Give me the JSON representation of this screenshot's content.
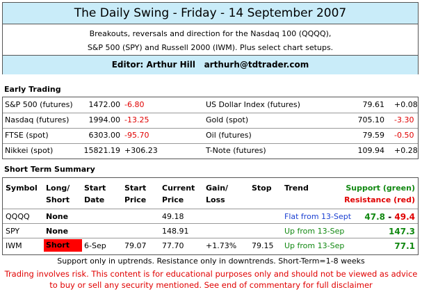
{
  "header": {
    "title": "The Daily Swing - Friday - 14 September 2007",
    "lines": [
      "Breakouts, reversals and direction for the Nasdaq 100 (QQQQ),",
      "S&P 500 (SPY) and Russell 2000 (IWM). Plus select chart setups."
    ],
    "editor_label": "Editor:",
    "editor": "Arthur Hill",
    "email": "arthurh@tdtrader.com"
  },
  "early_trading": {
    "title": "Early Trading",
    "rows": [
      [
        "S&P 500 (futures)",
        "1472.00",
        "-6.80",
        "US Dollar Index (futures)",
        "79.61",
        "+0.08"
      ],
      [
        "Nasdaq (futures)",
        "1994.00",
        "-13.25",
        "Gold (spot)",
        "705.10",
        "-3.30"
      ],
      [
        "FTSE (spot)",
        "6303.00",
        "-95.70",
        "Oil (futures)",
        "79.59",
        "-0.50"
      ],
      [
        "Nikkei (spot)",
        "15821.19",
        "+306.23",
        "T-Note (futures)",
        "109.94",
        "+0.28"
      ]
    ]
  },
  "summary": {
    "title": "Short Term Summary",
    "columns": [
      [
        "Symbol"
      ],
      [
        "Long/",
        "Short"
      ],
      [
        "Start",
        "Date"
      ],
      [
        "Start",
        "Price"
      ],
      [
        "Current",
        "Price"
      ],
      [
        "Gain/",
        "Loss"
      ],
      [
        "Stop"
      ],
      [
        "Trend"
      ]
    ],
    "support_label": "Support (green)",
    "resistance_label": "Resistance (red)",
    "level_separator": "-",
    "rows": [
      {
        "symbol": "QQQQ",
        "position": "None",
        "current_price": "49.18",
        "trend": "Flat from 13-Sept",
        "support": "47.8",
        "resistance": "49.4"
      },
      {
        "symbol": "SPY",
        "position": "None",
        "current_price": "148.91",
        "trend": "Up from 13-Sep",
        "support": "147.3"
      },
      {
        "symbol": "IWM",
        "position": "Short",
        "start_date": "6-Sep",
        "start_price": "79.07",
        "current_price": "77.70",
        "gain_loss": "+1.73%",
        "stop": "79.15",
        "trend": "Up from 13-Sep",
        "support": "77.1"
      }
    ]
  },
  "footer": {
    "note": "Support only in uptrends. Resistance only in downtrends. Short-Term=1-8 weeks",
    "disclaimer": [
      "Trading involves risk. This content is for educational purposes only and should not be viewed as advice",
      "to buy or sell any security mentioned. See end of commentary for full disclaimer"
    ]
  }
}
